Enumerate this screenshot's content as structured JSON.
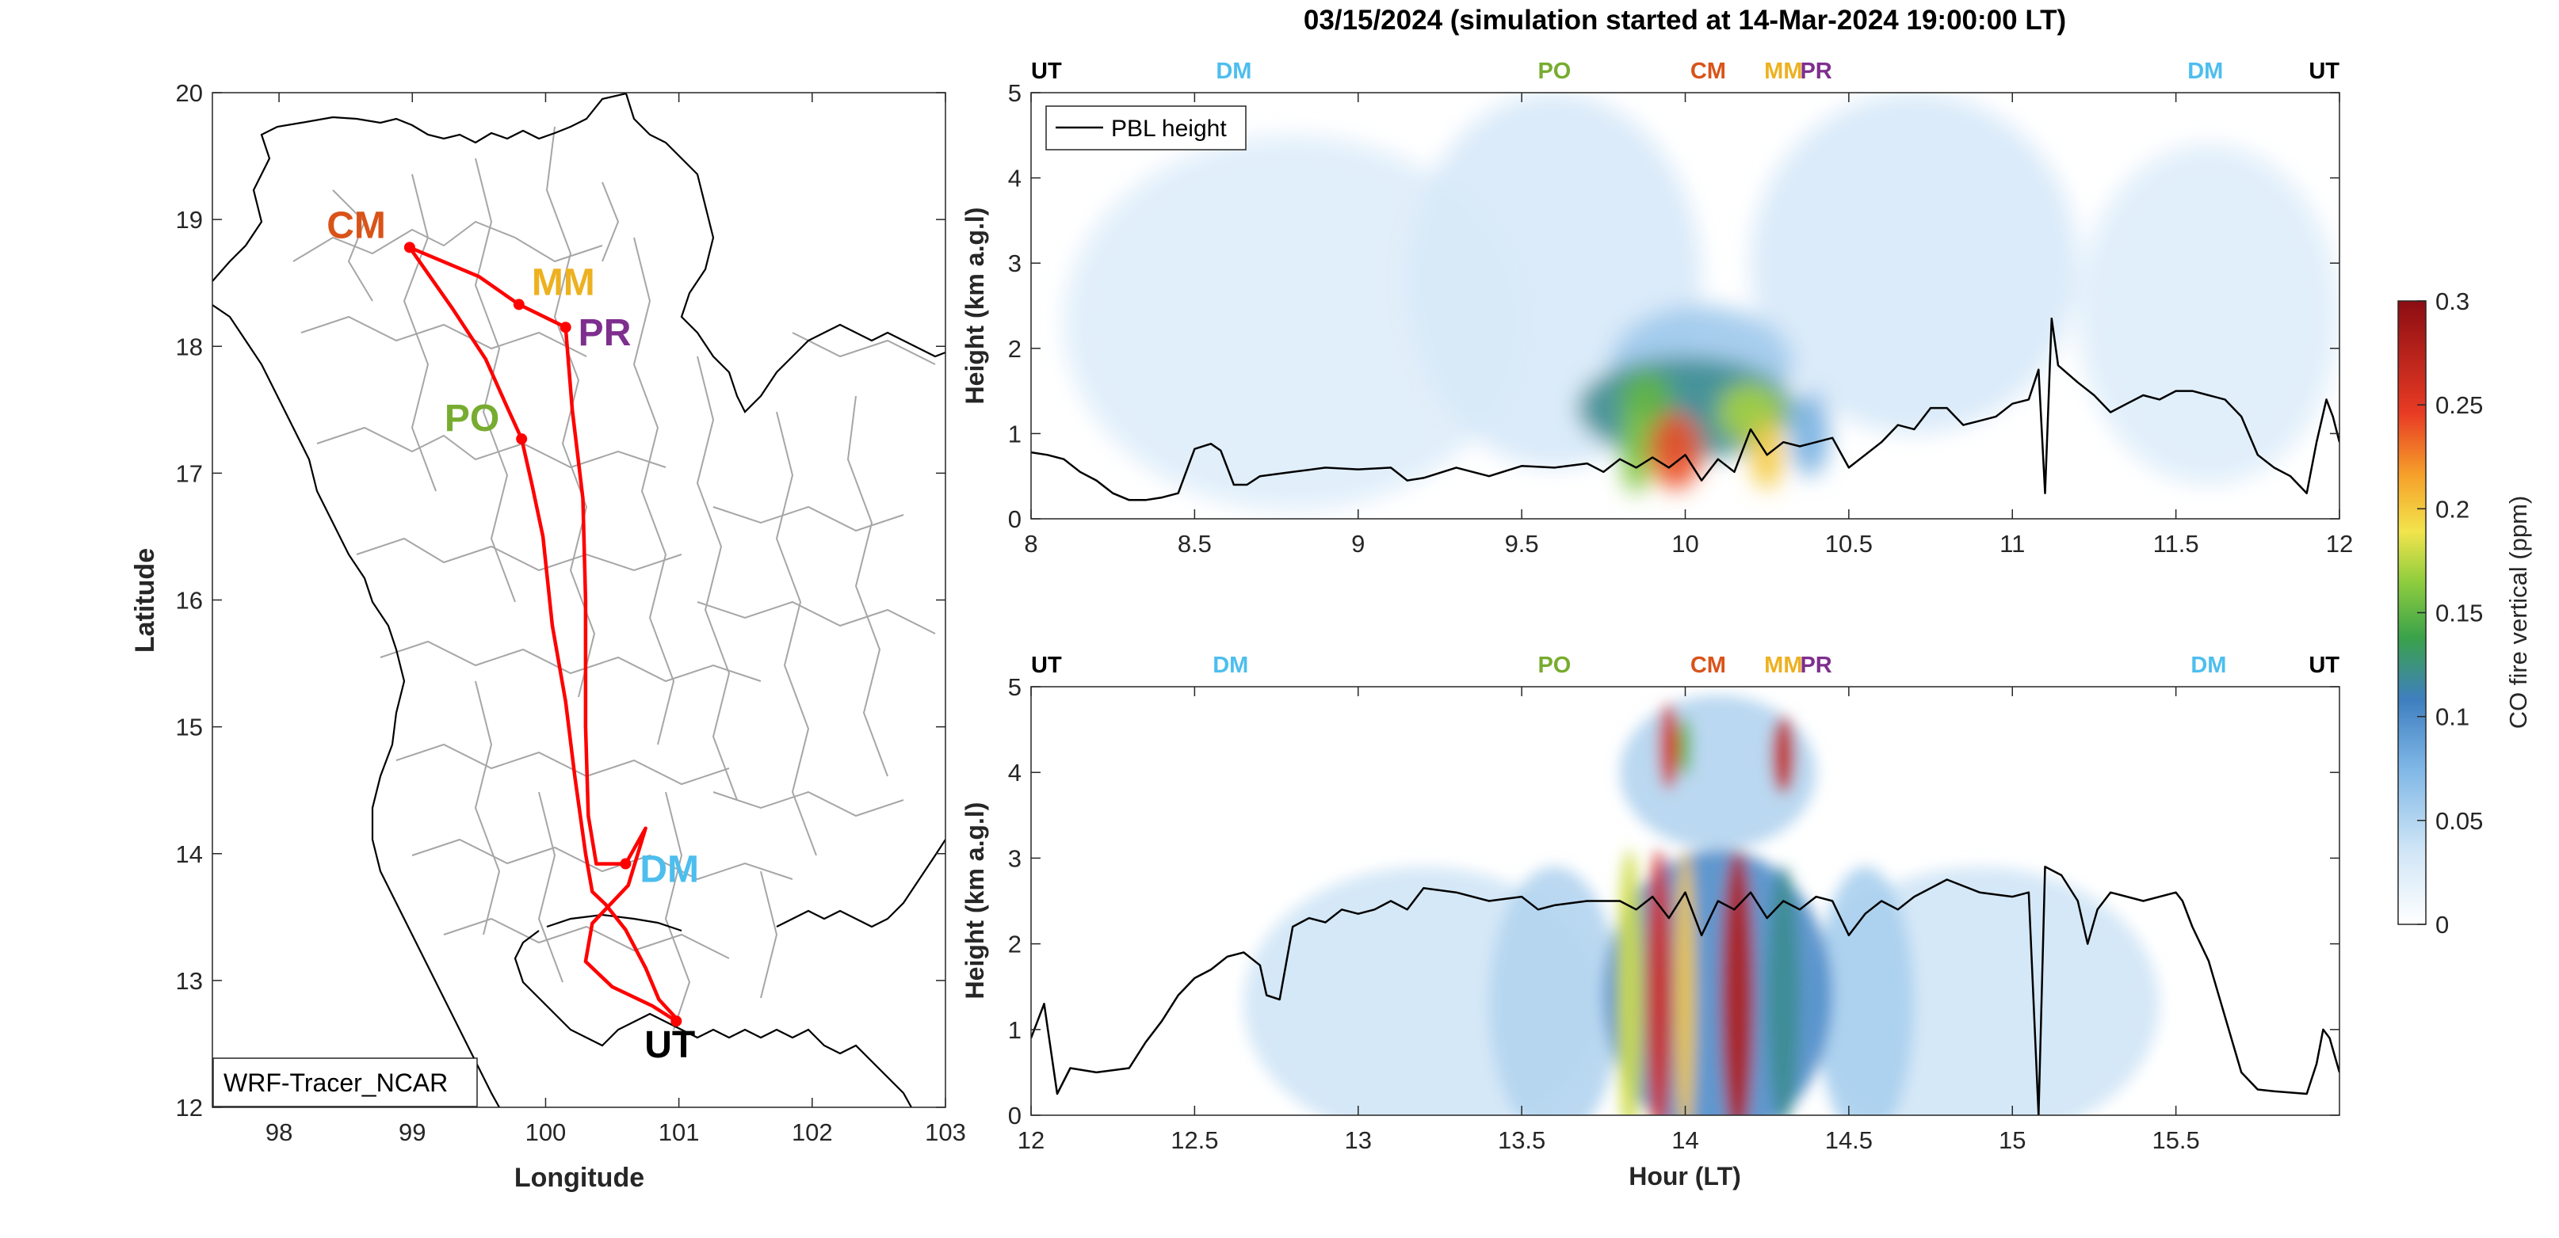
{
  "figure_title": "03/15/2024 (simulation started at 14-Mar-2024 19:00:00 LT)",
  "colors": {
    "CM": "#d95319",
    "MM": "#edb120",
    "PR": "#7e2f8e",
    "PO": "#77ac30",
    "DM": "#4dbeee",
    "UT": "#000000",
    "route": "#ff0000",
    "border": "#a6a6a6",
    "pbl": "#000000"
  },
  "chart_data": [
    {
      "type": "scatter",
      "name": "map",
      "xlabel": "Longitude",
      "ylabel": "Latitude",
      "xlim": [
        97.5,
        103
      ],
      "ylim": [
        12,
        20
      ],
      "xticks": [
        98,
        99,
        100,
        101,
        102,
        103
      ],
      "yticks": [
        12,
        13,
        14,
        15,
        16,
        17,
        18,
        19,
        20
      ],
      "legend": "WRF-Tracer_NCAR",
      "sites": [
        {
          "label": "CM",
          "lon": 98.98,
          "lat": 18.78
        },
        {
          "label": "MM",
          "lon": 99.8,
          "lat": 18.33
        },
        {
          "label": "PR",
          "lon": 100.15,
          "lat": 18.15
        },
        {
          "label": "PO",
          "lon": 99.82,
          "lat": 17.27
        },
        {
          "label": "DM",
          "lon": 100.6,
          "lat": 13.92
        },
        {
          "label": "UT",
          "lon": 100.98,
          "lat": 12.68
        }
      ],
      "route": [
        [
          101.0,
          12.68
        ],
        [
          100.85,
          12.85
        ],
        [
          100.75,
          13.1
        ],
        [
          100.6,
          13.4
        ],
        [
          100.45,
          13.6
        ],
        [
          100.35,
          13.7
        ],
        [
          100.3,
          14.0
        ],
        [
          100.22,
          14.6
        ],
        [
          100.15,
          15.2
        ],
        [
          100.05,
          15.8
        ],
        [
          99.98,
          16.5
        ],
        [
          99.9,
          16.9
        ],
        [
          99.82,
          17.27
        ],
        [
          99.72,
          17.5
        ],
        [
          99.55,
          17.9
        ],
        [
          99.3,
          18.3
        ],
        [
          98.98,
          18.78
        ],
        [
          99.5,
          18.55
        ],
        [
          99.8,
          18.33
        ],
        [
          100.15,
          18.15
        ],
        [
          100.2,
          17.5
        ],
        [
          100.28,
          16.8
        ],
        [
          100.3,
          16.0
        ],
        [
          100.3,
          15.0
        ],
        [
          100.32,
          14.3
        ],
        [
          100.38,
          13.92
        ],
        [
          100.6,
          13.92
        ],
        [
          100.75,
          14.2
        ],
        [
          100.62,
          13.75
        ],
        [
          100.35,
          13.45
        ],
        [
          100.3,
          13.15
        ],
        [
          100.5,
          12.95
        ],
        [
          100.8,
          12.8
        ],
        [
          100.98,
          12.68
        ]
      ]
    },
    {
      "type": "heatmap",
      "name": "curtain-upper",
      "xlabel": "",
      "ylabel": "Height (km a.g.l)",
      "xlim": [
        8,
        12
      ],
      "ylim": [
        0,
        5
      ],
      "xticks": [
        8,
        8.5,
        9,
        9.5,
        10,
        10.5,
        11,
        11.5,
        12
      ],
      "yticks": [
        0,
        1,
        2,
        3,
        4,
        5
      ],
      "legend": "PBL height",
      "site_labels": [
        {
          "label": "UT",
          "hour": 8.0
        },
        {
          "label": "DM",
          "hour": 8.62
        },
        {
          "label": "PO",
          "hour": 9.6
        },
        {
          "label": "CM",
          "hour": 10.07
        },
        {
          "label": "MM",
          "hour": 10.3
        },
        {
          "label": "PR",
          "hour": 10.4
        },
        {
          "label": "DM",
          "hour": 11.59
        },
        {
          "label": "UT",
          "hour": 12.0
        }
      ],
      "blobs": [
        {
          "x": 8.8,
          "y": 2.3,
          "sx": 0.7,
          "sy": 2.2,
          "v": 0.025
        },
        {
          "x": 9.6,
          "y": 2.8,
          "sx": 0.45,
          "sy": 2.2,
          "v": 0.03
        },
        {
          "x": 10.7,
          "y": 3.0,
          "sx": 0.5,
          "sy": 2.0,
          "v": 0.03
        },
        {
          "x": 11.6,
          "y": 2.4,
          "sx": 0.4,
          "sy": 2.0,
          "v": 0.025
        },
        {
          "x": 10.0,
          "y": 1.3,
          "sx": 0.33,
          "sy": 0.6,
          "v": 0.12
        },
        {
          "x": 10.05,
          "y": 1.8,
          "sx": 0.28,
          "sy": 0.7,
          "v": 0.06
        },
        {
          "x": 9.88,
          "y": 1.4,
          "sx": 0.08,
          "sy": 0.35,
          "v": 0.15
        },
        {
          "x": 9.97,
          "y": 0.8,
          "sx": 0.08,
          "sy": 0.45,
          "v": 0.24
        },
        {
          "x": 10.2,
          "y": 1.25,
          "sx": 0.1,
          "sy": 0.35,
          "v": 0.17
        },
        {
          "x": 10.25,
          "y": 0.75,
          "sx": 0.05,
          "sy": 0.4,
          "v": 0.2
        },
        {
          "x": 9.85,
          "y": 0.8,
          "sx": 0.05,
          "sy": 0.5,
          "v": 0.16
        },
        {
          "x": 10.38,
          "y": 1.0,
          "sx": 0.06,
          "sy": 0.5,
          "v": 0.08
        }
      ],
      "pbl_height": [
        [
          8.0,
          0.78
        ],
        [
          8.05,
          0.75
        ],
        [
          8.1,
          0.7
        ],
        [
          8.15,
          0.55
        ],
        [
          8.2,
          0.45
        ],
        [
          8.25,
          0.3
        ],
        [
          8.3,
          0.22
        ],
        [
          8.35,
          0.22
        ],
        [
          8.4,
          0.25
        ],
        [
          8.45,
          0.3
        ],
        [
          8.5,
          0.82
        ],
        [
          8.55,
          0.88
        ],
        [
          8.58,
          0.8
        ],
        [
          8.62,
          0.4
        ],
        [
          8.66,
          0.4
        ],
        [
          8.7,
          0.5
        ],
        [
          8.8,
          0.55
        ],
        [
          8.9,
          0.6
        ],
        [
          9.0,
          0.58
        ],
        [
          9.1,
          0.6
        ],
        [
          9.15,
          0.45
        ],
        [
          9.2,
          0.48
        ],
        [
          9.3,
          0.6
        ],
        [
          9.4,
          0.5
        ],
        [
          9.5,
          0.62
        ],
        [
          9.6,
          0.6
        ],
        [
          9.7,
          0.65
        ],
        [
          9.75,
          0.55
        ],
        [
          9.8,
          0.7
        ],
        [
          9.85,
          0.6
        ],
        [
          9.9,
          0.72
        ],
        [
          9.95,
          0.6
        ],
        [
          10.0,
          0.75
        ],
        [
          10.05,
          0.45
        ],
        [
          10.1,
          0.7
        ],
        [
          10.15,
          0.55
        ],
        [
          10.2,
          1.05
        ],
        [
          10.25,
          0.75
        ],
        [
          10.3,
          0.9
        ],
        [
          10.35,
          0.85
        ],
        [
          10.4,
          0.9
        ],
        [
          10.45,
          0.95
        ],
        [
          10.5,
          0.6
        ],
        [
          10.55,
          0.75
        ],
        [
          10.6,
          0.9
        ],
        [
          10.65,
          1.1
        ],
        [
          10.7,
          1.05
        ],
        [
          10.75,
          1.3
        ],
        [
          10.8,
          1.3
        ],
        [
          10.85,
          1.1
        ],
        [
          10.9,
          1.15
        ],
        [
          10.95,
          1.2
        ],
        [
          11.0,
          1.35
        ],
        [
          11.05,
          1.4
        ],
        [
          11.08,
          1.75
        ],
        [
          11.1,
          0.3
        ],
        [
          11.12,
          2.35
        ],
        [
          11.14,
          1.8
        ],
        [
          11.2,
          1.6
        ],
        [
          11.25,
          1.45
        ],
        [
          11.3,
          1.25
        ],
        [
          11.35,
          1.35
        ],
        [
          11.4,
          1.45
        ],
        [
          11.45,
          1.4
        ],
        [
          11.5,
          1.5
        ],
        [
          11.55,
          1.5
        ],
        [
          11.6,
          1.45
        ],
        [
          11.65,
          1.4
        ],
        [
          11.7,
          1.2
        ],
        [
          11.75,
          0.75
        ],
        [
          11.8,
          0.6
        ],
        [
          11.85,
          0.5
        ],
        [
          11.9,
          0.3
        ],
        [
          11.93,
          0.9
        ],
        [
          11.96,
          1.4
        ],
        [
          11.98,
          1.2
        ],
        [
          12.0,
          0.9
        ]
      ]
    },
    {
      "type": "heatmap",
      "name": "curtain-lower",
      "xlabel": "Hour (LT)",
      "ylabel": "Height (km a.g.l)",
      "xlim": [
        12,
        16
      ],
      "ylim": [
        0,
        5
      ],
      "xticks": [
        12,
        12.5,
        13,
        13.5,
        14,
        14.5,
        15,
        15.5
      ],
      "yticks": [
        0,
        1,
        2,
        3,
        4,
        5
      ],
      "site_labels": [
        {
          "label": "UT",
          "hour": 12.0
        },
        {
          "label": "DM",
          "hour": 12.61
        },
        {
          "label": "PO",
          "hour": 13.6
        },
        {
          "label": "CM",
          "hour": 14.07
        },
        {
          "label": "MM",
          "hour": 14.3
        },
        {
          "label": "PR",
          "hour": 14.4
        },
        {
          "label": "DM",
          "hour": 15.6
        },
        {
          "label": "UT",
          "hour": 16.0
        }
      ],
      "blobs": [
        {
          "x": 13.2,
          "y": 1.3,
          "sx": 0.55,
          "sy": 1.6,
          "v": 0.035
        },
        {
          "x": 14.9,
          "y": 1.3,
          "sx": 0.55,
          "sy": 1.6,
          "v": 0.035
        },
        {
          "x": 13.6,
          "y": 1.3,
          "sx": 0.2,
          "sy": 1.6,
          "v": 0.05
        },
        {
          "x": 14.55,
          "y": 1.3,
          "sx": 0.15,
          "sy": 1.6,
          "v": 0.055
        },
        {
          "x": 14.1,
          "y": 1.4,
          "sx": 0.35,
          "sy": 1.7,
          "v": 0.1
        },
        {
          "x": 13.83,
          "y": 1.4,
          "sx": 0.04,
          "sy": 1.7,
          "v": 0.18
        },
        {
          "x": 13.92,
          "y": 1.4,
          "sx": 0.04,
          "sy": 1.7,
          "v": 0.26
        },
        {
          "x": 14.0,
          "y": 1.4,
          "sx": 0.03,
          "sy": 1.7,
          "v": 0.2
        },
        {
          "x": 14.16,
          "y": 1.4,
          "sx": 0.05,
          "sy": 1.7,
          "v": 0.28
        },
        {
          "x": 14.3,
          "y": 1.4,
          "sx": 0.05,
          "sy": 1.5,
          "v": 0.12
        },
        {
          "x": 13.95,
          "y": 4.3,
          "sx": 0.03,
          "sy": 0.5,
          "v": 0.26
        },
        {
          "x": 14.0,
          "y": 4.3,
          "sx": 0.02,
          "sy": 0.35,
          "v": 0.15
        },
        {
          "x": 14.3,
          "y": 4.2,
          "sx": 0.035,
          "sy": 0.45,
          "v": 0.27
        },
        {
          "x": 14.1,
          "y": 4.0,
          "sx": 0.3,
          "sy": 0.9,
          "v": 0.05
        }
      ],
      "pbl_height": [
        [
          12.0,
          0.9
        ],
        [
          12.04,
          1.3
        ],
        [
          12.08,
          0.25
        ],
        [
          12.12,
          0.55
        ],
        [
          12.2,
          0.5
        ],
        [
          12.3,
          0.55
        ],
        [
          12.35,
          0.85
        ],
        [
          12.4,
          1.1
        ],
        [
          12.45,
          1.4
        ],
        [
          12.5,
          1.6
        ],
        [
          12.55,
          1.7
        ],
        [
          12.6,
          1.85
        ],
        [
          12.65,
          1.9
        ],
        [
          12.7,
          1.75
        ],
        [
          12.72,
          1.4
        ],
        [
          12.76,
          1.35
        ],
        [
          12.8,
          2.2
        ],
        [
          12.85,
          2.3
        ],
        [
          12.9,
          2.25
        ],
        [
          12.95,
          2.4
        ],
        [
          13.0,
          2.35
        ],
        [
          13.05,
          2.4
        ],
        [
          13.1,
          2.5
        ],
        [
          13.15,
          2.4
        ],
        [
          13.2,
          2.65
        ],
        [
          13.3,
          2.6
        ],
        [
          13.4,
          2.5
        ],
        [
          13.5,
          2.55
        ],
        [
          13.55,
          2.4
        ],
        [
          13.6,
          2.45
        ],
        [
          13.7,
          2.5
        ],
        [
          13.8,
          2.5
        ],
        [
          13.85,
          2.4
        ],
        [
          13.9,
          2.55
        ],
        [
          13.95,
          2.3
        ],
        [
          14.0,
          2.6
        ],
        [
          14.05,
          2.1
        ],
        [
          14.1,
          2.5
        ],
        [
          14.15,
          2.4
        ],
        [
          14.2,
          2.6
        ],
        [
          14.25,
          2.3
        ],
        [
          14.3,
          2.5
        ],
        [
          14.35,
          2.4
        ],
        [
          14.4,
          2.55
        ],
        [
          14.45,
          2.5
        ],
        [
          14.5,
          2.1
        ],
        [
          14.55,
          2.35
        ],
        [
          14.6,
          2.5
        ],
        [
          14.65,
          2.4
        ],
        [
          14.7,
          2.55
        ],
        [
          14.8,
          2.75
        ],
        [
          14.9,
          2.6
        ],
        [
          15.0,
          2.55
        ],
        [
          15.05,
          2.6
        ],
        [
          15.08,
          0.0
        ],
        [
          15.1,
          2.9
        ],
        [
          15.15,
          2.8
        ],
        [
          15.2,
          2.5
        ],
        [
          15.23,
          2.0
        ],
        [
          15.26,
          2.4
        ],
        [
          15.3,
          2.6
        ],
        [
          15.4,
          2.5
        ],
        [
          15.5,
          2.6
        ],
        [
          15.52,
          2.5
        ],
        [
          15.55,
          2.2
        ],
        [
          15.6,
          1.8
        ],
        [
          15.7,
          0.5
        ],
        [
          15.75,
          0.3
        ],
        [
          15.8,
          0.28
        ],
        [
          15.9,
          0.25
        ],
        [
          15.93,
          0.6
        ],
        [
          15.95,
          1.0
        ],
        [
          15.97,
          0.9
        ],
        [
          16.0,
          0.5
        ]
      ]
    }
  ],
  "colorbar": {
    "label": "CO fire vertical (ppm)",
    "range": [
      0,
      0.3
    ],
    "ticks": [
      0,
      0.05,
      0.1,
      0.15,
      0.2,
      0.25,
      0.3
    ]
  }
}
